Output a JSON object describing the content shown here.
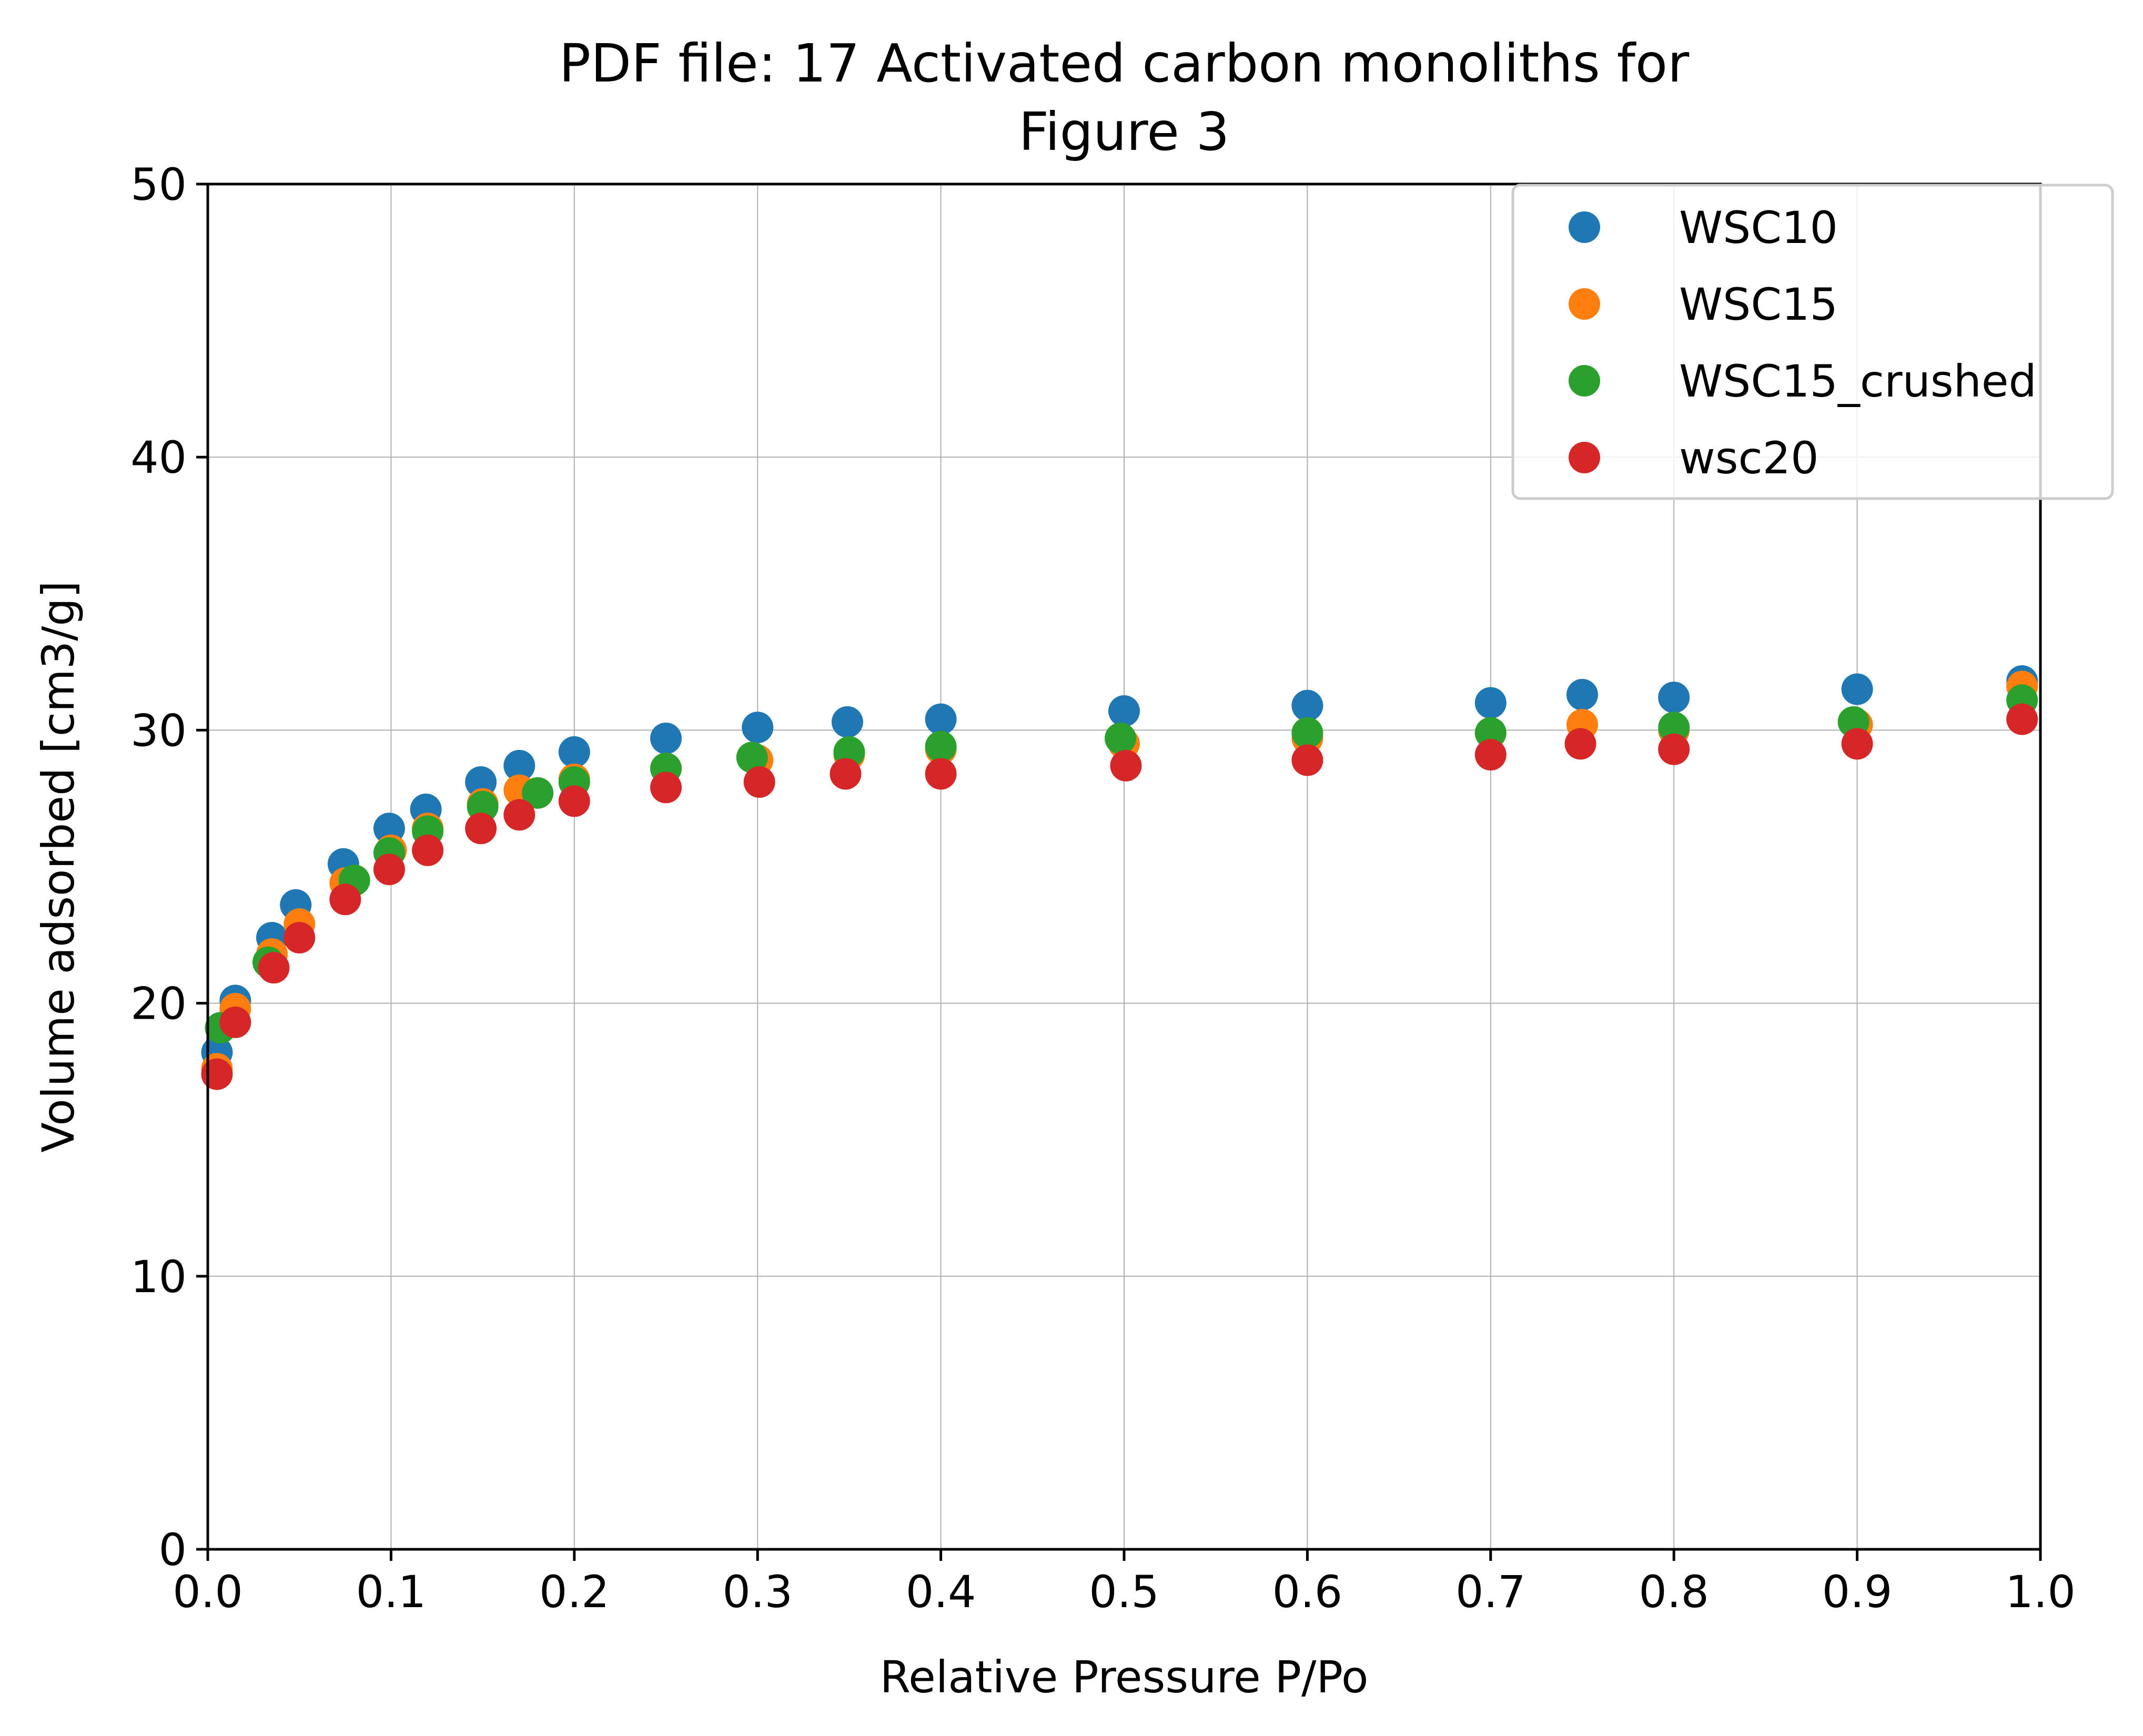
{
  "chart_data": {
    "type": "scatter",
    "title": "PDF file: 17 Activated carbon monoliths for\nFigure 3",
    "title_lines": [
      "PDF file: 17 Activated carbon monoliths for",
      "Figure 3"
    ],
    "xlabel": "Relative Pressure P/Po",
    "ylabel": "Volume adsorbed [cm3/g]",
    "xlim": [
      0.0,
      1.0
    ],
    "ylim": [
      0,
      50
    ],
    "xticks": [
      "0.0",
      "0.1",
      "0.2",
      "0.3",
      "0.4",
      "0.5",
      "0.6",
      "0.7",
      "0.8",
      "0.9",
      "1.0"
    ],
    "yticks": [
      "0",
      "10",
      "20",
      "30",
      "40",
      "50"
    ],
    "grid": true,
    "legend_position": "top-right",
    "series": [
      {
        "name": "WSC10",
        "color": "#1f77b4",
        "x": [
          0.005,
          0.015,
          0.035,
          0.048,
          0.074,
          0.099,
          0.119,
          0.149,
          0.17,
          0.2,
          0.25,
          0.3,
          0.349,
          0.4,
          0.5,
          0.6,
          0.7,
          0.75,
          0.8,
          0.9,
          0.99
        ],
        "y": [
          18.2,
          20.1,
          22.4,
          23.6,
          25.1,
          26.4,
          27.1,
          28.1,
          28.7,
          29.2,
          29.7,
          30.1,
          30.3,
          30.4,
          30.7,
          30.9,
          31.0,
          31.3,
          31.2,
          31.5,
          31.8
        ]
      },
      {
        "name": "WSC15",
        "color": "#ff7f0e",
        "x": [
          0.005,
          0.015,
          0.035,
          0.05,
          0.075,
          0.1,
          0.12,
          0.15,
          0.17,
          0.2,
          0.25,
          0.3,
          0.35,
          0.4,
          0.5,
          0.6,
          0.7,
          0.75,
          0.8,
          0.9,
          0.99
        ],
        "y": [
          17.6,
          19.8,
          21.8,
          22.9,
          24.4,
          25.6,
          26.4,
          27.3,
          27.8,
          28.2,
          28.6,
          28.9,
          29.1,
          29.3,
          29.5,
          29.7,
          29.9,
          30.2,
          30.0,
          30.2,
          31.6
        ]
      },
      {
        "name": "WSC15_crushed",
        "color": "#2ca02c",
        "x": [
          0.007,
          0.033,
          0.08,
          0.099,
          0.12,
          0.15,
          0.18,
          0.2,
          0.25,
          0.297,
          0.35,
          0.4,
          0.498,
          0.6,
          0.7,
          0.8,
          0.898,
          0.99
        ],
        "y": [
          19.1,
          21.5,
          24.5,
          25.5,
          26.3,
          27.2,
          27.7,
          28.1,
          28.6,
          29.0,
          29.2,
          29.4,
          29.7,
          29.9,
          29.9,
          30.1,
          30.3,
          31.1
        ]
      },
      {
        "name": "wsc20",
        "color": "#d62728",
        "x": [
          0.005,
          0.015,
          0.036,
          0.05,
          0.075,
          0.099,
          0.12,
          0.149,
          0.17,
          0.2,
          0.25,
          0.301,
          0.348,
          0.4,
          0.501,
          0.6,
          0.7,
          0.749,
          0.8,
          0.9,
          0.99
        ],
        "y": [
          17.4,
          19.3,
          21.3,
          22.4,
          23.8,
          24.9,
          25.6,
          26.4,
          26.9,
          27.4,
          27.9,
          28.1,
          28.4,
          28.4,
          28.7,
          28.9,
          29.1,
          29.5,
          29.3,
          29.5,
          30.4
        ]
      }
    ]
  }
}
